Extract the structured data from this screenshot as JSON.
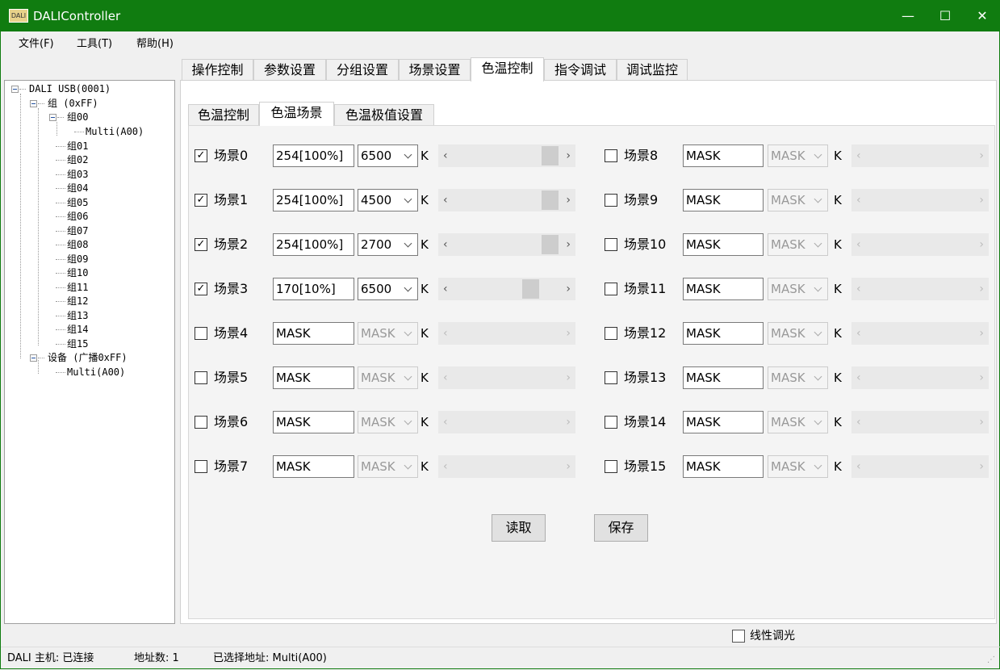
{
  "window": {
    "title": "DALIController",
    "icon_text": "DALI",
    "minimize": "—",
    "maximize": "☐",
    "close": "✕"
  },
  "menu": [
    "文件(F)",
    "工具(T)",
    "帮助(H)"
  ],
  "tabs": [
    {
      "label": "操作控制"
    },
    {
      "label": "参数设置"
    },
    {
      "label": "分组设置"
    },
    {
      "label": "场景设置"
    },
    {
      "label": "色温控制",
      "active": true
    },
    {
      "label": "指令调试"
    },
    {
      "label": "调试监控"
    }
  ],
  "subtabs": [
    {
      "label": "色温控制"
    },
    {
      "label": "色温场景",
      "active": true
    },
    {
      "label": "色温极值设置"
    }
  ],
  "tree": {
    "root": "DALI USB(0001)",
    "group_root": "组 (0xFF)",
    "groups": [
      "组00",
      "组01",
      "组02",
      "组03",
      "组04",
      "组05",
      "组06",
      "组07",
      "组08",
      "组09",
      "组10",
      "组11",
      "组12",
      "组13",
      "组14",
      "组15"
    ],
    "group00_child": "Multi(A00)",
    "device_root": "设备 (广播0xFF)",
    "device_child": "Multi(A00)"
  },
  "scenes": [
    {
      "label": "场景0",
      "checked": true,
      "level": "254[100%]",
      "cct": "6500",
      "slider": 1.0
    },
    {
      "label": "场景1",
      "checked": true,
      "level": "254[100%]",
      "cct": "4500",
      "slider": 1.0
    },
    {
      "label": "场景2",
      "checked": true,
      "level": "254[100%]",
      "cct": "2700",
      "slider": 1.0
    },
    {
      "label": "场景3",
      "checked": true,
      "level": "170[10%]",
      "cct": "6500",
      "slider": 0.78
    },
    {
      "label": "场景4",
      "checked": false,
      "level": "MASK",
      "cct": "MASK"
    },
    {
      "label": "场景5",
      "checked": false,
      "level": "MASK",
      "cct": "MASK"
    },
    {
      "label": "场景6",
      "checked": false,
      "level": "MASK",
      "cct": "MASK"
    },
    {
      "label": "场景7",
      "checked": false,
      "level": "MASK",
      "cct": "MASK"
    },
    {
      "label": "场景8",
      "checked": false,
      "level": "MASK",
      "cct": "MASK"
    },
    {
      "label": "场景9",
      "checked": false,
      "level": "MASK",
      "cct": "MASK"
    },
    {
      "label": "场景10",
      "checked": false,
      "level": "MASK",
      "cct": "MASK"
    },
    {
      "label": "场景11",
      "checked": false,
      "level": "MASK",
      "cct": "MASK"
    },
    {
      "label": "场景12",
      "checked": false,
      "level": "MASK",
      "cct": "MASK"
    },
    {
      "label": "场景13",
      "checked": false,
      "level": "MASK",
      "cct": "MASK"
    },
    {
      "label": "场景14",
      "checked": false,
      "level": "MASK",
      "cct": "MASK"
    },
    {
      "label": "场景15",
      "checked": false,
      "level": "MASK",
      "cct": "MASK"
    }
  ],
  "unit": "K",
  "buttons": {
    "read": "读取",
    "save": "保存"
  },
  "linear_dimming": {
    "label": "线性调光",
    "checked": false
  },
  "status": {
    "host": "DALI 主机: 已连接",
    "count": "地址数: 1",
    "selected": "已选择地址: Multi(A00)"
  },
  "colors": {
    "titlebar": "#107c10"
  }
}
